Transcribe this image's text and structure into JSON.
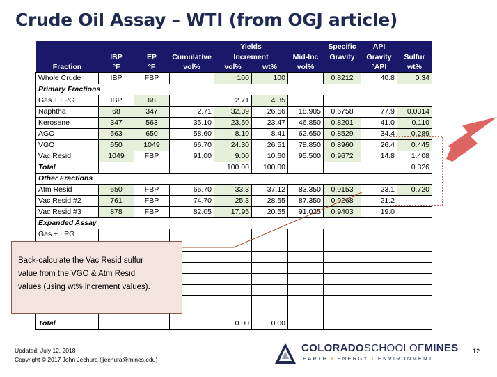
{
  "title": "Crude Oil Assay – WTI (from OGJ article)",
  "table": {
    "headers": {
      "fraction": [
        "",
        "",
        "Fraction"
      ],
      "ibp": [
        "",
        "IBP",
        "°F"
      ],
      "ep": [
        "",
        "EP",
        "°F"
      ],
      "cumulative": [
        "",
        "Cumulative",
        "vol%"
      ],
      "yields_group": "Yields",
      "increment": "Increment",
      "inc_vol": "vol%",
      "inc_wt": "wt%",
      "midinc": [
        "",
        "Mid-Inc",
        "vol%"
      ],
      "sg": [
        "Specific",
        "Gravity",
        ""
      ],
      "api": [
        "API",
        "Gravity",
        "°API"
      ],
      "sulfur": [
        "",
        "Sulfur",
        "wt%"
      ]
    },
    "rows": [
      {
        "type": "data",
        "cells": [
          "Whole Crude",
          "IBP",
          "FBP",
          "",
          "100",
          "100",
          "",
          "0.8212",
          "40.8",
          "0.34"
        ]
      },
      {
        "type": "section",
        "label": "Primary Fractions"
      },
      {
        "type": "data",
        "cells": [
          "Gas + LPG",
          "IBP",
          "68",
          "",
          "2.71",
          "4.35",
          "",
          "",
          "",
          ""
        ]
      },
      {
        "type": "data",
        "cells": [
          "Naphtha",
          "68",
          "347",
          "2.71",
          "32.39",
          "26.66",
          "18.905",
          "0.6758",
          "77.9",
          "0.0314"
        ]
      },
      {
        "type": "data",
        "cells": [
          "Kerosene",
          "347",
          "563",
          "35.10",
          "23.50",
          "23.47",
          "46.850",
          "0.8201",
          "41.0",
          "0.110"
        ]
      },
      {
        "type": "data",
        "cells": [
          "AGO",
          "563",
          "650",
          "58.60",
          "8.10",
          "8.41",
          "62.650",
          "0.8529",
          "34.4",
          "0.289"
        ]
      },
      {
        "type": "data",
        "cells": [
          "VGO",
          "650",
          "1049",
          "66.70",
          "24.30",
          "26.51",
          "78.850",
          "0.8960",
          "26.4",
          "0.445"
        ]
      },
      {
        "type": "data",
        "cells": [
          "Vac Resid",
          "1049",
          "FBP",
          "91.00",
          "9.00",
          "10.60",
          "95.500",
          "0.9672",
          "14.8",
          "1.408"
        ]
      },
      {
        "type": "total",
        "cells": [
          "Total",
          "",
          "",
          "",
          "100.00",
          "100.00",
          "",
          "",
          "",
          "0.326"
        ]
      },
      {
        "type": "section",
        "label": "Other Fractions"
      },
      {
        "type": "data",
        "cells": [
          "Atm Resid",
          "650",
          "FBP",
          "66.70",
          "33.3",
          "37.12",
          "83.350",
          "0.9153",
          "23.1",
          "0.720"
        ]
      },
      {
        "type": "data",
        "cells": [
          "Vac Resid #2",
          "761",
          "FBP",
          "74.70",
          "25.3",
          "28.55",
          "87.350",
          "0.9268",
          "21.2",
          ""
        ]
      },
      {
        "type": "data",
        "cells": [
          "Vac Resid #3",
          "878",
          "FBP",
          "82.05",
          "17.95",
          "20.55",
          "91.025",
          "0.9403",
          "19.0",
          ""
        ]
      },
      {
        "type": "section",
        "label": "Expanded Assay"
      },
      {
        "type": "data",
        "cells": [
          "Gas + LPG",
          "",
          "",
          "",
          "",
          "",
          "",
          "",
          "",
          ""
        ]
      },
      {
        "type": "data",
        "cells": [
          "",
          "",
          "",
          "",
          "",
          "",
          "",
          "",
          "",
          ""
        ]
      },
      {
        "type": "data",
        "cells": [
          "",
          "",
          "",
          "",
          "",
          "",
          "",
          "",
          "",
          ""
        ]
      },
      {
        "type": "data",
        "cells": [
          "",
          "",
          "",
          "",
          "",
          "",
          "",
          "",
          "",
          ""
        ]
      },
      {
        "type": "data",
        "cells": [
          "",
          "",
          "",
          "",
          "",
          "",
          "",
          "",
          "",
          ""
        ]
      },
      {
        "type": "data",
        "cells": [
          "",
          "",
          "",
          "",
          "",
          "",
          "",
          "",
          "",
          ""
        ]
      },
      {
        "type": "data",
        "cells": [
          "",
          "",
          "",
          "",
          "",
          "",
          "",
          "",
          "",
          ""
        ]
      },
      {
        "type": "data",
        "cells": [
          "Vac Resid",
          "",
          "",
          "",
          "",
          "",
          "",
          "",
          "",
          ""
        ]
      },
      {
        "type": "total",
        "cells": [
          "Total",
          "",
          "",
          "",
          "0.00",
          "0.00",
          "",
          "",
          "",
          ""
        ]
      }
    ]
  },
  "callout": {
    "lines": [
      "Back-calculate the Vac Resid sulfur",
      "value from the VGO & Atm Resid",
      "values (using wt% increment values)."
    ]
  },
  "footer": {
    "updated": "Updated: July 12, 2018",
    "copyright": "Copyright © 2017 John Jechura (jjechura@mines.edu)"
  },
  "logo": {
    "name_bold1": "COLORADO",
    "name_thin": "SCHOOLOF",
    "name_bold2": "MINES",
    "tag_parts": [
      "EARTH",
      "ENERGY",
      "ENVIRONMENT"
    ],
    "tag_sep": "•"
  },
  "page_number": "12",
  "colors": {
    "header_bg": "#1a1869",
    "highlight_green": "#e5efd9",
    "callout_bg": "#f3e4de",
    "arrow_red": "#d9534f",
    "dotted_box": "#c0392b"
  },
  "highlight_map": [
    [
      false,
      false,
      false,
      false,
      true,
      true,
      false,
      true,
      false,
      true
    ],
    null,
    [
      false,
      false,
      true,
      false,
      false,
      true,
      false,
      false,
      false,
      false
    ],
    [
      false,
      true,
      true,
      false,
      true,
      false,
      false,
      false,
      false,
      true
    ],
    [
      false,
      true,
      true,
      false,
      true,
      false,
      false,
      true,
      false,
      true
    ],
    [
      false,
      true,
      true,
      false,
      true,
      false,
      false,
      true,
      false,
      true
    ],
    [
      false,
      true,
      true,
      false,
      true,
      false,
      false,
      true,
      false,
      true
    ],
    [
      false,
      true,
      false,
      false,
      true,
      false,
      false,
      true,
      false,
      false
    ],
    [
      false,
      false,
      false,
      false,
      false,
      false,
      false,
      false,
      false,
      false
    ],
    null,
    [
      false,
      true,
      false,
      false,
      true,
      false,
      false,
      true,
      false,
      true
    ],
    [
      false,
      true,
      false,
      false,
      true,
      false,
      false,
      true,
      false,
      false
    ],
    [
      false,
      true,
      false,
      false,
      true,
      false,
      false,
      true,
      false,
      false
    ]
  ]
}
